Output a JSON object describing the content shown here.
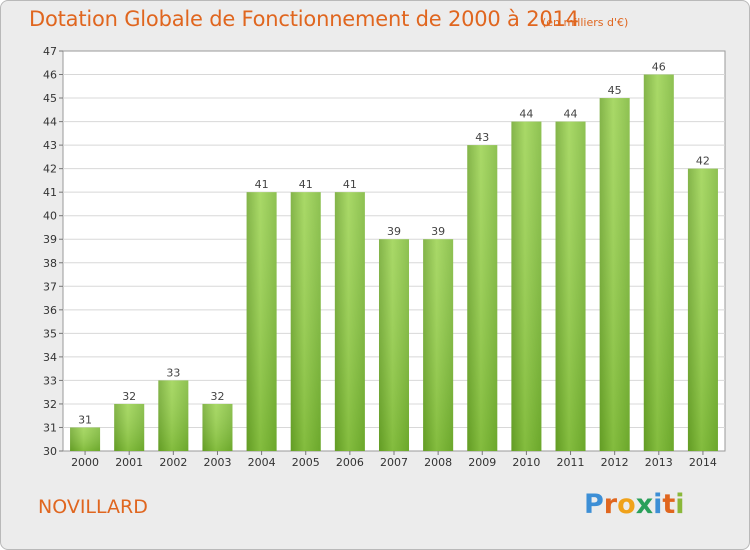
{
  "chart_data": {
    "type": "bar",
    "title": "Dotation Globale de Fonctionnement de 2000 à 2014",
    "subtitle": "(en milliers d'€)",
    "categories": [
      "2000",
      "2001",
      "2002",
      "2003",
      "2004",
      "2005",
      "2006",
      "2007",
      "2008",
      "2009",
      "2010",
      "2011",
      "2012",
      "2013",
      "2014"
    ],
    "values": [
      31,
      32,
      33,
      32,
      41,
      41,
      41,
      39,
      39,
      43,
      44,
      44,
      45,
      46,
      42
    ],
    "ylim": [
      30,
      47
    ],
    "yticks": [
      30,
      31,
      32,
      33,
      34,
      35,
      36,
      37,
      38,
      39,
      40,
      41,
      42,
      43,
      44,
      45,
      46,
      47
    ],
    "xlabel": "",
    "ylabel": "",
    "grid": true,
    "bar_color": "#7cbb2c",
    "bar_highlight": "#a6d95a"
  },
  "commune": "NOVILLARD",
  "logo": {
    "letters": [
      "P",
      "r",
      "o",
      "x",
      "i",
      "t",
      "i"
    ],
    "colors": [
      "#3d8fd6",
      "#e0661f",
      "#f0a21a",
      "#2aa05a",
      "#3d8fd6",
      "#e0661f",
      "#8ab83a"
    ]
  },
  "colors": {
    "title": "#e0661f",
    "background": "#ececec",
    "plot_background": "#ffffff",
    "grid": "#d8d8d8"
  }
}
